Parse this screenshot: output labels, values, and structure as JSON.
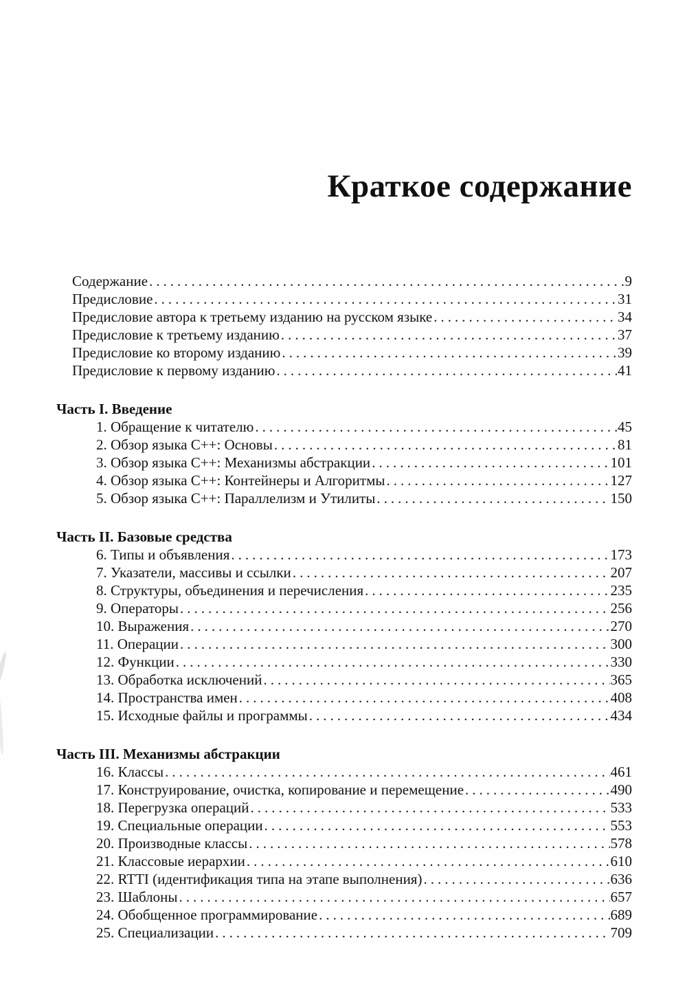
{
  "page": {
    "title": "Краткое содержание"
  },
  "front_matter": [
    {
      "label": "Содержание",
      "page": "9"
    },
    {
      "label": "Предисловие",
      "page": "31"
    },
    {
      "label": "Предисловие автора к третьему изданию на русском языке",
      "page": "34"
    },
    {
      "label": "Предисловие к третьему изданию",
      "page": "37"
    },
    {
      "label": "Предисловие ко второму изданию",
      "page": "39"
    },
    {
      "label": "Предисловие к первому изданию",
      "page": "41"
    }
  ],
  "parts": [
    {
      "heading": "Часть I. Введение",
      "chapters": [
        {
          "label": "1. Обращение к читателю",
          "page": "45"
        },
        {
          "label": "2. Обзор языка C++: Основы",
          "page": "81"
        },
        {
          "label": "3. Обзор языка C++: Механизмы абстракции",
          "page": "101"
        },
        {
          "label": "4. Обзор языка C++: Контейнеры и Алгоритмы",
          "page": "127"
        },
        {
          "label": "5. Обзор языка C++: Параллелизм и Утилиты",
          "page": "150"
        }
      ]
    },
    {
      "heading": "Часть II. Базовые средства",
      "chapters": [
        {
          "label": "6. Типы и объявления",
          "page": "173"
        },
        {
          "label": "7. Указатели, массивы и ссылки",
          "page": "207"
        },
        {
          "label": "8. Структуры, объединения и перечисления",
          "page": "235"
        },
        {
          "label": "9. Операторы",
          "page": "256"
        },
        {
          "label": "10. Выражения",
          "page": "270"
        },
        {
          "label": "11. Операции",
          "page": "300"
        },
        {
          "label": "12. Функции",
          "page": "330"
        },
        {
          "label": "13. Обработка исключений",
          "page": "365"
        },
        {
          "label": "14. Пространства имен",
          "page": "408"
        },
        {
          "label": "15. Исходные файлы и программы",
          "page": "434"
        }
      ]
    },
    {
      "heading": "Часть III. Механизмы абстракции",
      "chapters": [
        {
          "label": "16. Классы",
          "page": "461"
        },
        {
          "label": "17. Конструирование, очистка, копирование и перемещение",
          "page": "490"
        },
        {
          "label": "18. Перегрузка операций",
          "page": "533"
        },
        {
          "label": "19. Специальные операции",
          "page": "553"
        },
        {
          "label": "20. Производные классы",
          "page": "578"
        },
        {
          "label": "21. Классовые иерархии",
          "page": "610"
        },
        {
          "label": "22. RTTI (идентификация типа на этапе выполнения)",
          "page": "636"
        },
        {
          "label": "23. Шаблоны",
          "page": "657"
        },
        {
          "label": "24. Обобщенное программирование",
          "page": "689"
        },
        {
          "label": "25. Специализации",
          "page": "709"
        }
      ]
    }
  ]
}
